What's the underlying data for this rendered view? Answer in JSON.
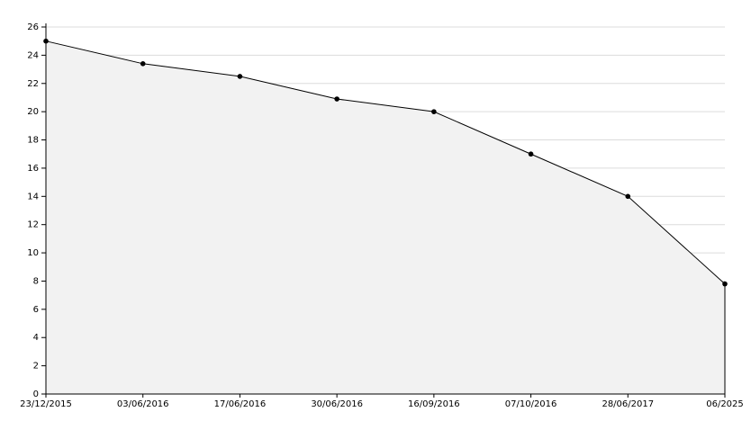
{
  "chart_data": {
    "type": "area",
    "categories": [
      "23/12/2015",
      "03/06/2016",
      "17/06/2016",
      "30/06/2016",
      "16/09/2016",
      "07/10/2016",
      "28/06/2017",
      "06/2025"
    ],
    "values": [
      25,
      23.4,
      22.5,
      20.9,
      20,
      17,
      14,
      7.8
    ],
    "color": "#000000",
    "fill": "#f2f2f2",
    "ylim": [
      0,
      26
    ],
    "yticks": [
      0,
      2,
      4,
      6,
      8,
      10,
      12,
      14,
      16,
      18,
      20,
      22,
      24,
      26
    ],
    "grid": true
  }
}
